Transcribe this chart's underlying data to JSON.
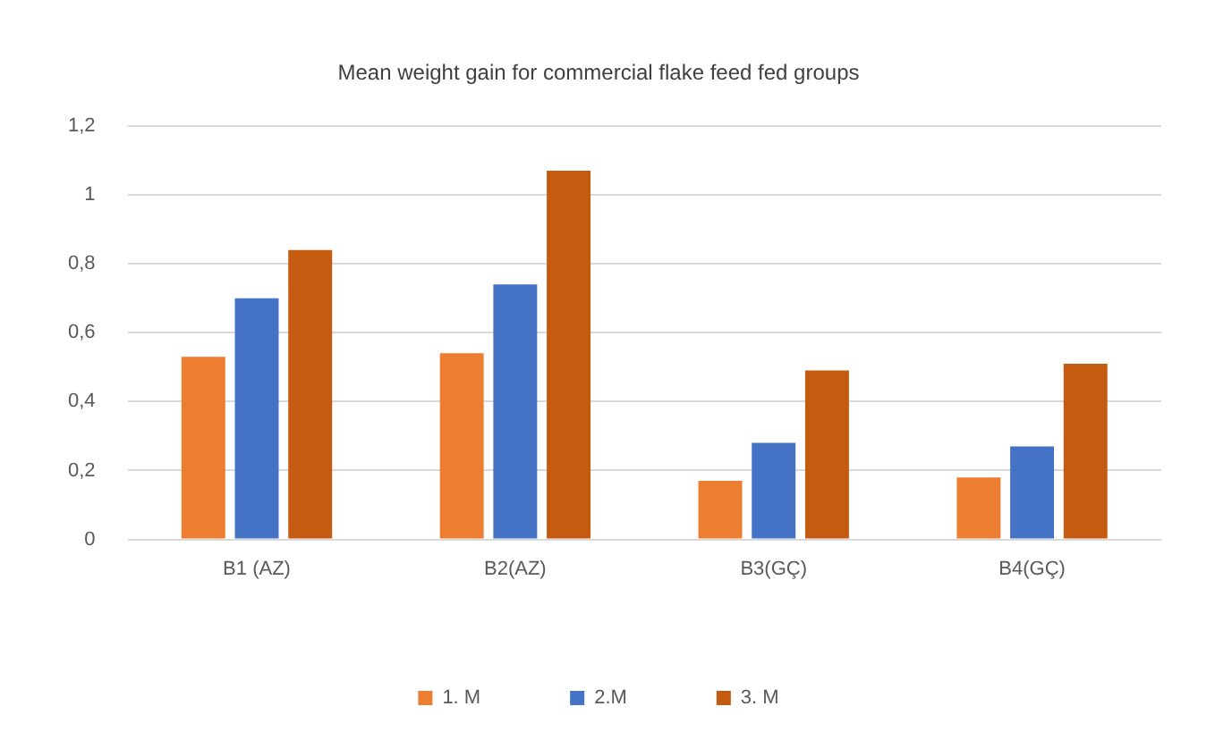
{
  "chart_data": {
    "type": "bar",
    "title": "Mean weight gain for commercial flake feed fed groups",
    "categories": [
      "B1 (AZ)",
      "B2(AZ)",
      "B3(GÇ)",
      "B4(GÇ)"
    ],
    "series": [
      {
        "name": "1. M",
        "color": "#ed7d31",
        "values": [
          0.53,
          0.54,
          0.17,
          0.18
        ]
      },
      {
        "name": "2.M",
        "color": "#4472c4",
        "values": [
          0.7,
          0.74,
          0.28,
          0.27
        ]
      },
      {
        "name": "3. M",
        "color": "#c55a11",
        "values": [
          0.84,
          1.07,
          0.49,
          0.51
        ]
      }
    ],
    "ylim": [
      0,
      1.2
    ],
    "yticks": [
      0,
      {
        "value": 0.2,
        "label": "0,2"
      },
      {
        "value": 0.4,
        "label": "0,4"
      },
      {
        "value": 0.6,
        "label": "0,6"
      },
      {
        "value": 0.8,
        "label": "0,8"
      },
      1,
      {
        "value": 1.2,
        "label": "1,2"
      }
    ],
    "grid": "y",
    "legend": "bottom"
  }
}
